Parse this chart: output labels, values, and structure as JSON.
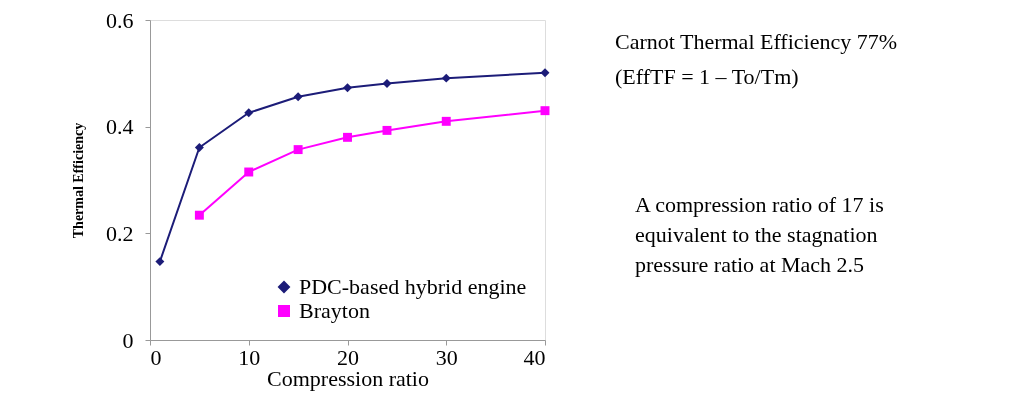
{
  "chart_data": {
    "type": "line",
    "xlabel": "Compression ratio",
    "ylabel": "Thermal Efficiency",
    "xlim": [
      0,
      40
    ],
    "xticks": [
      0,
      10,
      20,
      30,
      40
    ],
    "ylim": [
      0,
      0.6
    ],
    "yticks": [
      0,
      0.2,
      0.4,
      0.6
    ],
    "grid": false,
    "legend": "bottom right",
    "line_style": "solid",
    "series": [
      {
        "name": "PDC-based hybrid engine",
        "color": "#1c1c78",
        "marker": "diamond",
        "x": [
          1,
          5,
          10,
          15,
          20,
          24,
          30,
          40
        ],
        "values": [
          0.147,
          0.361,
          0.426,
          0.456,
          0.473,
          0.481,
          0.491,
          0.501
        ]
      },
      {
        "name": "Brayton",
        "color": "#ff00ff",
        "marker": "square",
        "x": [
          5,
          10,
          15,
          20,
          24,
          30,
          40
        ],
        "values": [
          0.234,
          0.315,
          0.357,
          0.38,
          0.393,
          0.41,
          0.43
        ]
      }
    ],
    "annotations": [
      "Carnot Thermal Efficiency 77%",
      "(EffTF = 1 – To/Tm)",
      "A compression ratio of 17 is\nequivalent to the stagnation\npressure ratio at Mach 2.5"
    ]
  }
}
